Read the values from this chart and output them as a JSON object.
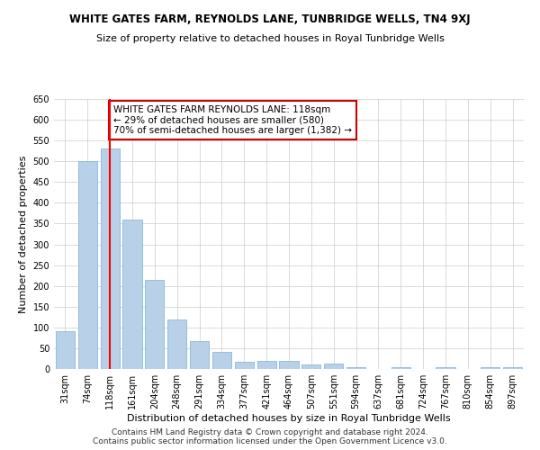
{
  "title": "WHITE GATES FARM, REYNOLDS LANE, TUNBRIDGE WELLS, TN4 9XJ",
  "subtitle": "Size of property relative to detached houses in Royal Tunbridge Wells",
  "xlabel": "Distribution of detached houses by size in Royal Tunbridge Wells",
  "ylabel": "Number of detached properties",
  "categories": [
    "31sqm",
    "74sqm",
    "118sqm",
    "161sqm",
    "204sqm",
    "248sqm",
    "291sqm",
    "334sqm",
    "377sqm",
    "421sqm",
    "464sqm",
    "507sqm",
    "551sqm",
    "594sqm",
    "637sqm",
    "681sqm",
    "724sqm",
    "767sqm",
    "810sqm",
    "854sqm",
    "897sqm"
  ],
  "values": [
    90,
    500,
    530,
    360,
    215,
    120,
    67,
    42,
    18,
    20,
    20,
    10,
    12,
    5,
    0,
    5,
    0,
    5,
    0,
    5,
    5
  ],
  "bar_color": "#b8d0e8",
  "bar_edge_color": "#7aafd4",
  "redline_index": 2,
  "annotation_text": "WHITE GATES FARM REYNOLDS LANE: 118sqm\n← 29% of detached houses are smaller (580)\n70% of semi-detached houses are larger (1,382) →",
  "annotation_box_color": "#ffffff",
  "annotation_box_edge_color": "#cc0000",
  "ylim": [
    0,
    650
  ],
  "yticks": [
    0,
    50,
    100,
    150,
    200,
    250,
    300,
    350,
    400,
    450,
    500,
    550,
    600,
    650
  ],
  "footer1": "Contains HM Land Registry data © Crown copyright and database right 2024.",
  "footer2": "Contains public sector information licensed under the Open Government Licence v3.0.",
  "bg_color": "#ffffff",
  "grid_color": "#cccccc",
  "title_fontsize": 8.5,
  "subtitle_fontsize": 8,
  "xlabel_fontsize": 8,
  "ylabel_fontsize": 8,
  "tick_fontsize": 7,
  "annotation_fontsize": 7.5,
  "footer_fontsize": 6.5
}
